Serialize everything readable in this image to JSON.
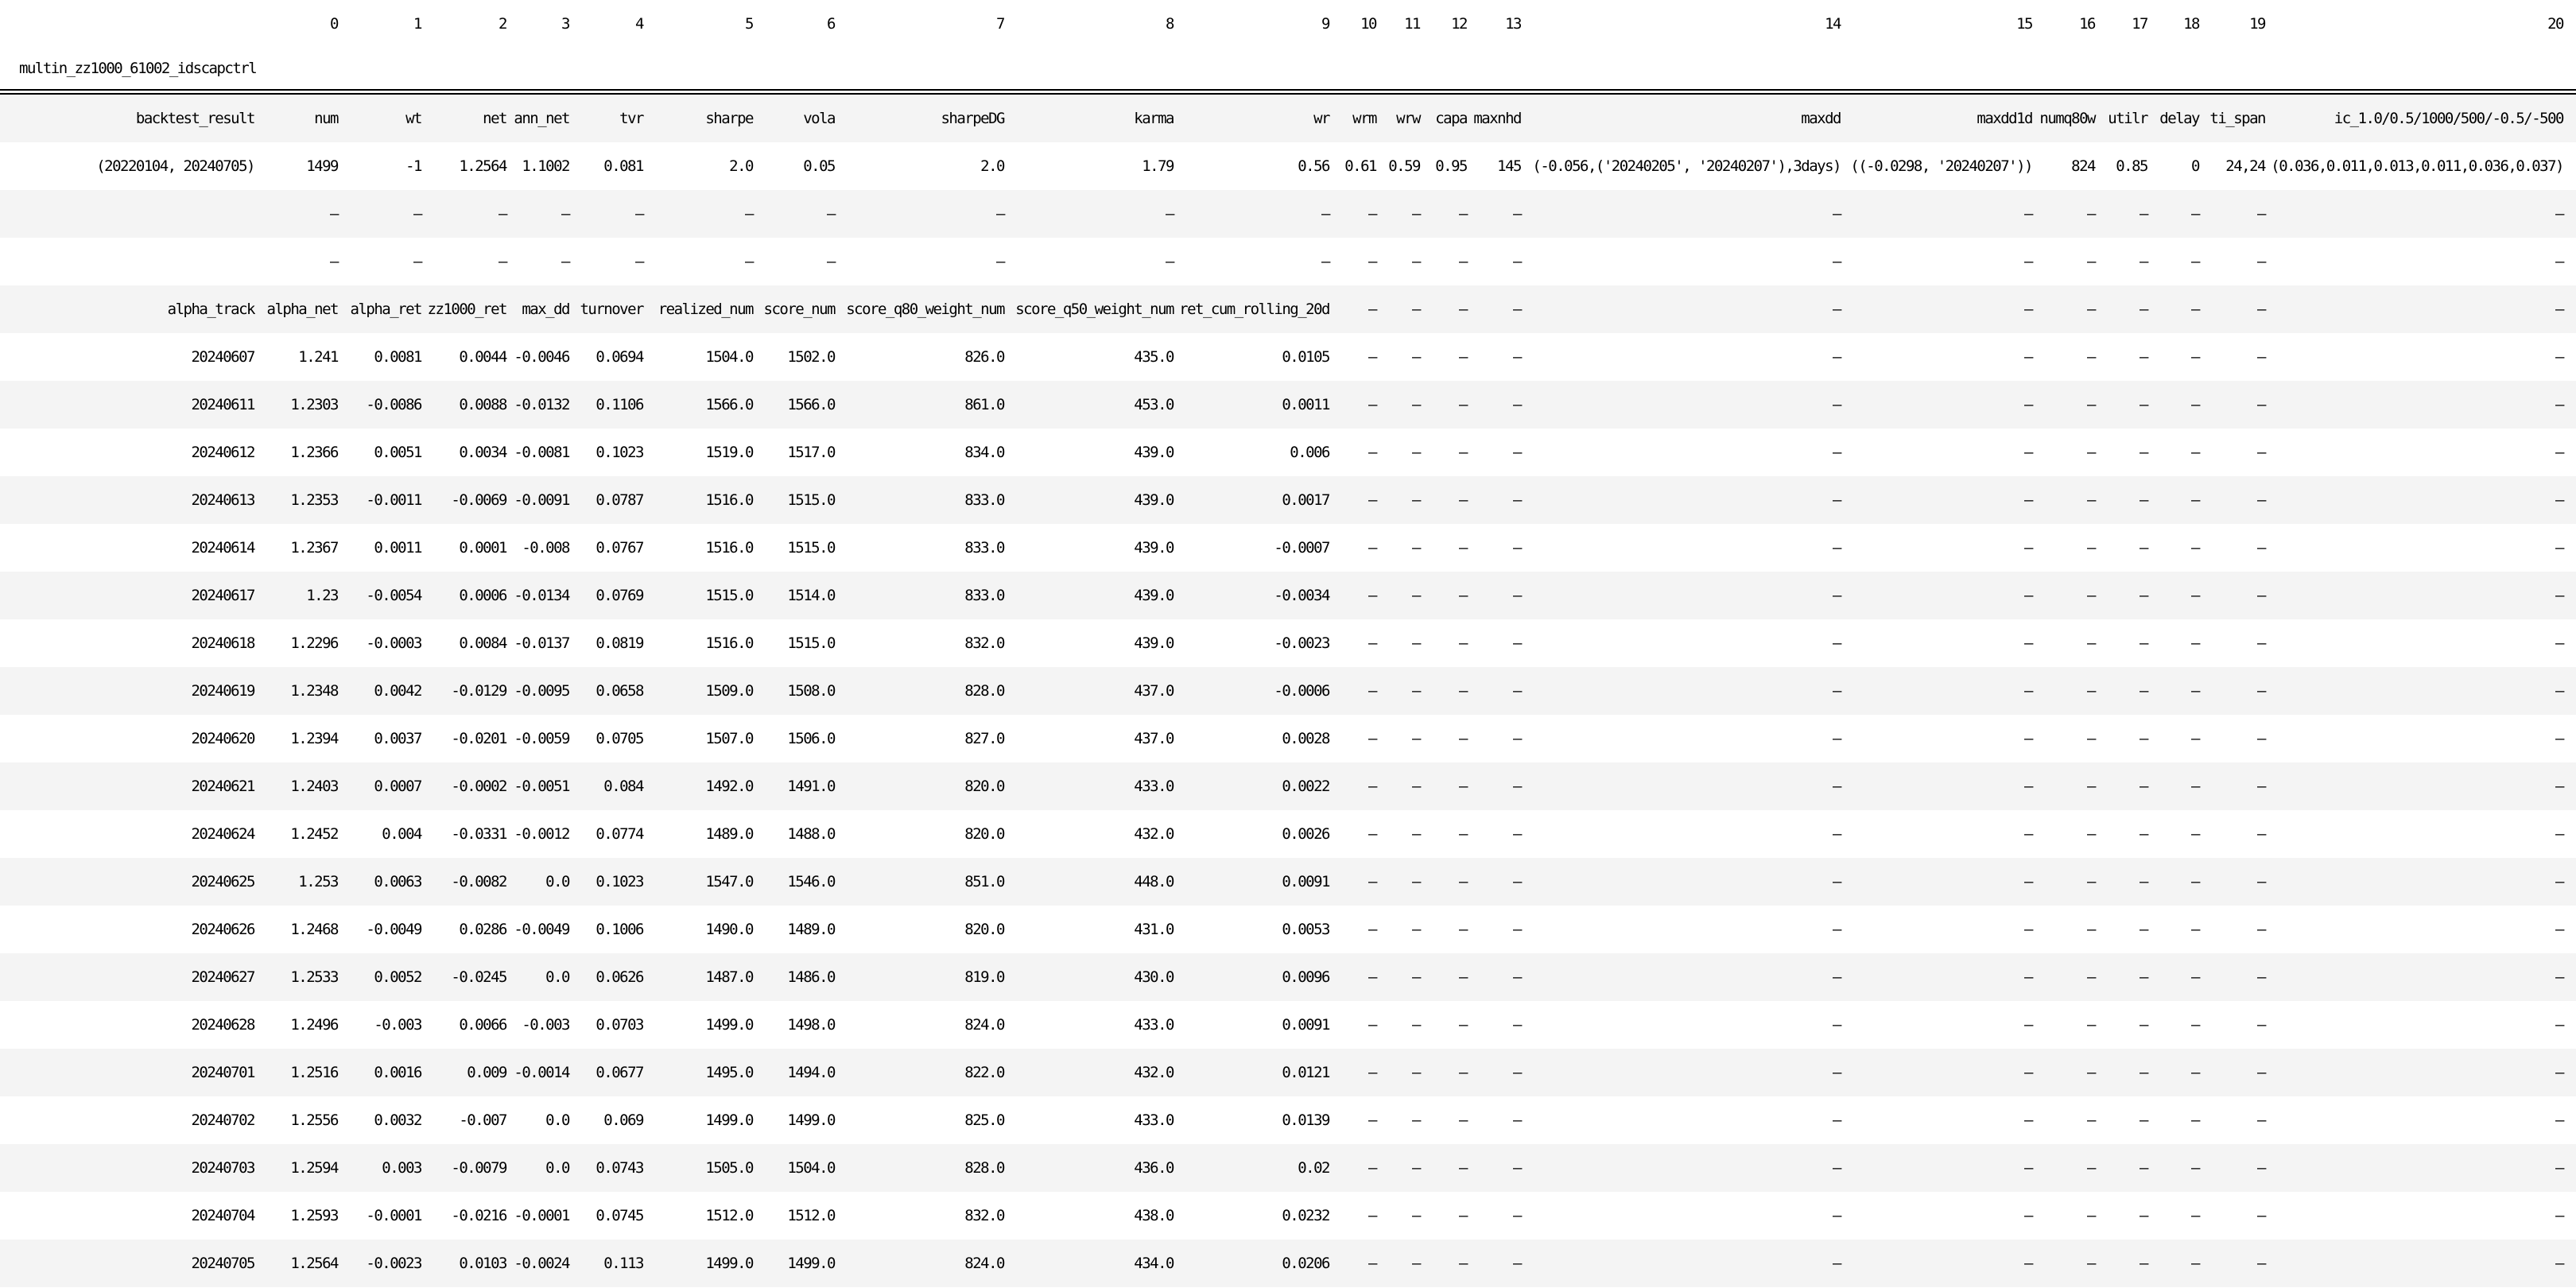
{
  "colors": {
    "page_background": "#ffffff",
    "stripe_row_background": "#f4f4f4",
    "text": "#000000",
    "header_rule": "#000000"
  },
  "table": {
    "title": "multin_zz1000_61002_idscapctrl",
    "index_rows": [
      [
        "",
        "0",
        "1",
        "2",
        "3",
        "4",
        "5",
        "6",
        "7",
        "8",
        "9",
        "10",
        "11",
        "12",
        "13",
        "14",
        "15",
        "16",
        "17",
        "18",
        "19",
        "20"
      ]
    ],
    "rows": [
      [
        "backtest_result",
        "num",
        "wt",
        "net",
        "ann_net",
        "tvr",
        "sharpe",
        "vola",
        "sharpeDG",
        "karma",
        "wr",
        "wrm",
        "wrw",
        "capa",
        "maxnhd",
        "maxdd",
        "maxdd1d",
        "numq80w",
        "utilr",
        "delay",
        "ti_span",
        "ic_1.0/0.5/1000/500/-0.5/-500"
      ],
      [
        "(20220104, 20240705)",
        "1499",
        "-1",
        "1.2564",
        "1.1002",
        "0.081",
        "2.0",
        "0.05",
        "2.0",
        "1.79",
        "0.56",
        "0.61",
        "0.59",
        "0.95",
        "145",
        "(-0.056,('20240205', '20240207'),3days)",
        "((-0.0298, '20240207'))",
        "824",
        "0.85",
        "0",
        "24,24",
        "(0.036,0.011,0.013,0.011,0.036,0.037)"
      ],
      [
        "",
        "—",
        "—",
        "—",
        "—",
        "—",
        "—",
        "—",
        "—",
        "—",
        "—",
        "—",
        "—",
        "—",
        "—",
        "—",
        "—",
        "—",
        "—",
        "—",
        "—",
        "—"
      ],
      [
        "",
        "—",
        "—",
        "—",
        "—",
        "—",
        "—",
        "—",
        "—",
        "—",
        "—",
        "—",
        "—",
        "—",
        "—",
        "—",
        "—",
        "—",
        "—",
        "—",
        "—",
        "—"
      ],
      [
        "alpha_track",
        "alpha_net",
        "alpha_ret",
        "zz1000_ret",
        "max_dd",
        "turnover",
        "realized_num",
        "score_num",
        "score_q80_weight_num",
        "score_q50_weight_num",
        "ret_cum_rolling_20d",
        "—",
        "—",
        "—",
        "—",
        "—",
        "—",
        "—",
        "—",
        "—",
        "—",
        "—"
      ],
      [
        "20240607",
        "1.241",
        "0.0081",
        "0.0044",
        "-0.0046",
        "0.0694",
        "1504.0",
        "1502.0",
        "826.0",
        "435.0",
        "0.0105",
        "—",
        "—",
        "—",
        "—",
        "—",
        "—",
        "—",
        "—",
        "—",
        "—",
        "—"
      ],
      [
        "20240611",
        "1.2303",
        "-0.0086",
        "0.0088",
        "-0.0132",
        "0.1106",
        "1566.0",
        "1566.0",
        "861.0",
        "453.0",
        "0.0011",
        "—",
        "—",
        "—",
        "—",
        "—",
        "—",
        "—",
        "—",
        "—",
        "—",
        "—"
      ],
      [
        "20240612",
        "1.2366",
        "0.0051",
        "0.0034",
        "-0.0081",
        "0.1023",
        "1519.0",
        "1517.0",
        "834.0",
        "439.0",
        "0.006",
        "—",
        "—",
        "—",
        "—",
        "—",
        "—",
        "—",
        "—",
        "—",
        "—",
        "—"
      ],
      [
        "20240613",
        "1.2353",
        "-0.0011",
        "-0.0069",
        "-0.0091",
        "0.0787",
        "1516.0",
        "1515.0",
        "833.0",
        "439.0",
        "0.0017",
        "—",
        "—",
        "—",
        "—",
        "—",
        "—",
        "—",
        "—",
        "—",
        "—",
        "—"
      ],
      [
        "20240614",
        "1.2367",
        "0.0011",
        "0.0001",
        "-0.008",
        "0.0767",
        "1516.0",
        "1515.0",
        "833.0",
        "439.0",
        "-0.0007",
        "—",
        "—",
        "—",
        "—",
        "—",
        "—",
        "—",
        "—",
        "—",
        "—",
        "—"
      ],
      [
        "20240617",
        "1.23",
        "-0.0054",
        "0.0006",
        "-0.0134",
        "0.0769",
        "1515.0",
        "1514.0",
        "833.0",
        "439.0",
        "-0.0034",
        "—",
        "—",
        "—",
        "—",
        "—",
        "—",
        "—",
        "—",
        "—",
        "—",
        "—"
      ],
      [
        "20240618",
        "1.2296",
        "-0.0003",
        "0.0084",
        "-0.0137",
        "0.0819",
        "1516.0",
        "1515.0",
        "832.0",
        "439.0",
        "-0.0023",
        "—",
        "—",
        "—",
        "—",
        "—",
        "—",
        "—",
        "—",
        "—",
        "—",
        "—"
      ],
      [
        "20240619",
        "1.2348",
        "0.0042",
        "-0.0129",
        "-0.0095",
        "0.0658",
        "1509.0",
        "1508.0",
        "828.0",
        "437.0",
        "-0.0006",
        "—",
        "—",
        "—",
        "—",
        "—",
        "—",
        "—",
        "—",
        "—",
        "—",
        "—"
      ],
      [
        "20240620",
        "1.2394",
        "0.0037",
        "-0.0201",
        "-0.0059",
        "0.0705",
        "1507.0",
        "1506.0",
        "827.0",
        "437.0",
        "0.0028",
        "—",
        "—",
        "—",
        "—",
        "—",
        "—",
        "—",
        "—",
        "—",
        "—",
        "—"
      ],
      [
        "20240621",
        "1.2403",
        "0.0007",
        "-0.0002",
        "-0.0051",
        "0.084",
        "1492.0",
        "1491.0",
        "820.0",
        "433.0",
        "0.0022",
        "—",
        "—",
        "—",
        "—",
        "—",
        "—",
        "—",
        "—",
        "—",
        "—",
        "—"
      ],
      [
        "20240624",
        "1.2452",
        "0.004",
        "-0.0331",
        "-0.0012",
        "0.0774",
        "1489.0",
        "1488.0",
        "820.0",
        "432.0",
        "0.0026",
        "—",
        "—",
        "—",
        "—",
        "—",
        "—",
        "—",
        "—",
        "—",
        "—",
        "—"
      ],
      [
        "20240625",
        "1.253",
        "0.0063",
        "-0.0082",
        "0.0",
        "0.1023",
        "1547.0",
        "1546.0",
        "851.0",
        "448.0",
        "0.0091",
        "—",
        "—",
        "—",
        "—",
        "—",
        "—",
        "—",
        "—",
        "—",
        "—",
        "—"
      ],
      [
        "20240626",
        "1.2468",
        "-0.0049",
        "0.0286",
        "-0.0049",
        "0.1006",
        "1490.0",
        "1489.0",
        "820.0",
        "431.0",
        "0.0053",
        "—",
        "—",
        "—",
        "—",
        "—",
        "—",
        "—",
        "—",
        "—",
        "—",
        "—"
      ],
      [
        "20240627",
        "1.2533",
        "0.0052",
        "-0.0245",
        "0.0",
        "0.0626",
        "1487.0",
        "1486.0",
        "819.0",
        "430.0",
        "0.0096",
        "—",
        "—",
        "—",
        "—",
        "—",
        "—",
        "—",
        "—",
        "—",
        "—",
        "—"
      ],
      [
        "20240628",
        "1.2496",
        "-0.003",
        "0.0066",
        "-0.003",
        "0.0703",
        "1499.0",
        "1498.0",
        "824.0",
        "433.0",
        "0.0091",
        "—",
        "—",
        "—",
        "—",
        "—",
        "—",
        "—",
        "—",
        "—",
        "—",
        "—"
      ],
      [
        "20240701",
        "1.2516",
        "0.0016",
        "0.009",
        "-0.0014",
        "0.0677",
        "1495.0",
        "1494.0",
        "822.0",
        "432.0",
        "0.0121",
        "—",
        "—",
        "—",
        "—",
        "—",
        "—",
        "—",
        "—",
        "—",
        "—",
        "—"
      ],
      [
        "20240702",
        "1.2556",
        "0.0032",
        "-0.007",
        "0.0",
        "0.069",
        "1499.0",
        "1499.0",
        "825.0",
        "433.0",
        "0.0139",
        "—",
        "—",
        "—",
        "—",
        "—",
        "—",
        "—",
        "—",
        "—",
        "—",
        "—"
      ],
      [
        "20240703",
        "1.2594",
        "0.003",
        "-0.0079",
        "0.0",
        "0.0743",
        "1505.0",
        "1504.0",
        "828.0",
        "436.0",
        "0.02",
        "—",
        "—",
        "—",
        "—",
        "—",
        "—",
        "—",
        "—",
        "—",
        "—",
        "—"
      ],
      [
        "20240704",
        "1.2593",
        "-0.0001",
        "-0.0216",
        "-0.0001",
        "0.0745",
        "1512.0",
        "1512.0",
        "832.0",
        "438.0",
        "0.0232",
        "—",
        "—",
        "—",
        "—",
        "—",
        "—",
        "—",
        "—",
        "—",
        "—",
        "—"
      ],
      [
        "20240705",
        "1.2564",
        "-0.0023",
        "0.0103",
        "-0.0024",
        "0.113",
        "1499.0",
        "1499.0",
        "824.0",
        "434.0",
        "0.0206",
        "—",
        "—",
        "—",
        "—",
        "—",
        "—",
        "—",
        "—",
        "—",
        "—",
        "—"
      ]
    ]
  }
}
